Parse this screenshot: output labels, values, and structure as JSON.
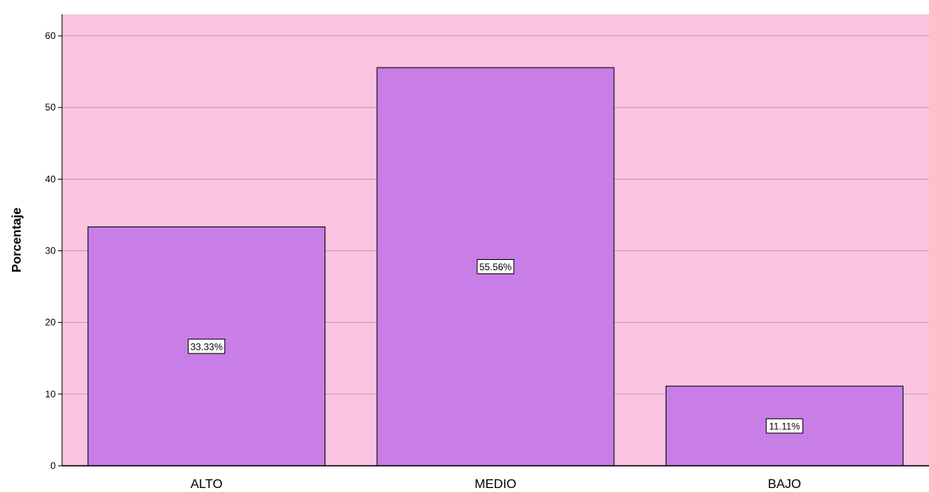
{
  "chart_data": {
    "type": "bar",
    "categories": [
      "ALTO",
      "MEDIO",
      "BAJO"
    ],
    "values": [
      33.33,
      55.56,
      11.11
    ],
    "data_labels": [
      "33.33%",
      "55.56%",
      "11.11%"
    ],
    "title": "",
    "xlabel": "",
    "ylabel": "Porcentaje",
    "ylim": [
      0,
      63
    ],
    "yticks": [
      0,
      10,
      20,
      30,
      40,
      50,
      60
    ],
    "grid": true,
    "legend": "none",
    "colors": {
      "plot_background": "#fbc4e2",
      "bar_fill": "#c87ee6",
      "bar_stroke": "#000000",
      "gridline": "#b4a3b0",
      "label_box_fill": "#ffffff"
    }
  }
}
